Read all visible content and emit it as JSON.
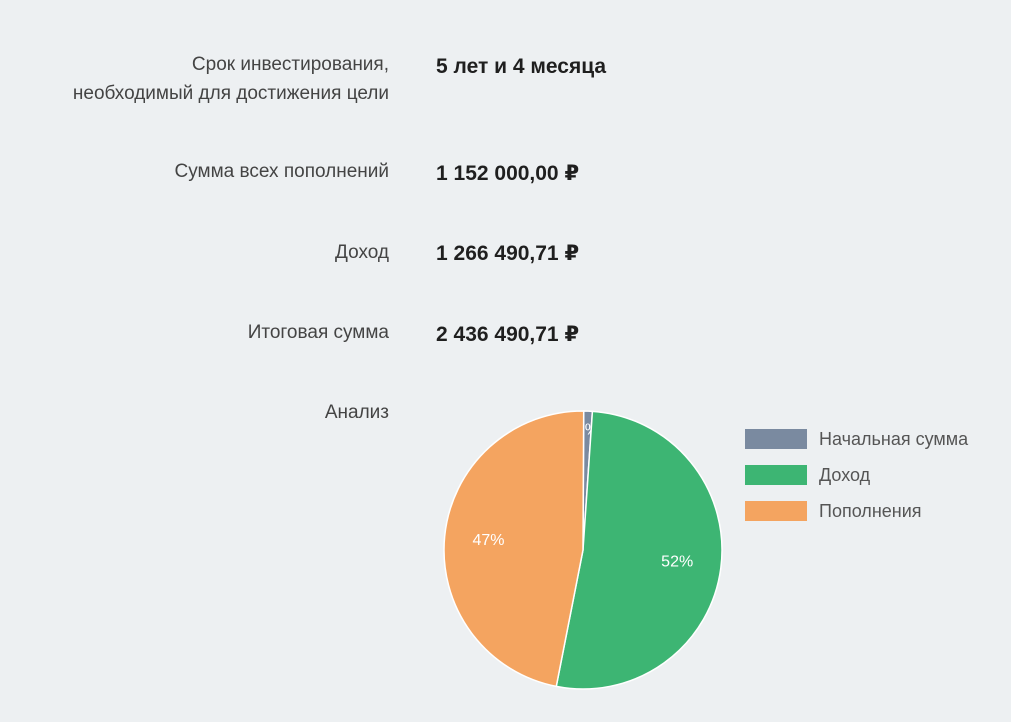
{
  "rows": [
    {
      "label_line1": "Срок инвестирования,",
      "label_line2": "необходимый для достижения цели",
      "value": "5 лет и 4 месяца"
    },
    {
      "label": "Сумма всех пополнений",
      "value": "1 152 000,00 ₽"
    },
    {
      "label": "Доход",
      "value": "1 266 490,71 ₽"
    },
    {
      "label": "Итоговая сумма",
      "value": "2 436 490,71 ₽"
    }
  ],
  "analysis_label": "Анализ",
  "chart_data": {
    "type": "pie",
    "slices": [
      {
        "name": "Начальная сумма",
        "value": 1,
        "label": "1%",
        "color": "#7a8aa0"
      },
      {
        "name": "Доход",
        "value": 52,
        "label": "52%",
        "color": "#3db573"
      },
      {
        "name": "Пополнения",
        "value": 47,
        "label": "47%",
        "color": "#f4a460"
      }
    ],
    "legend_position": "right"
  }
}
